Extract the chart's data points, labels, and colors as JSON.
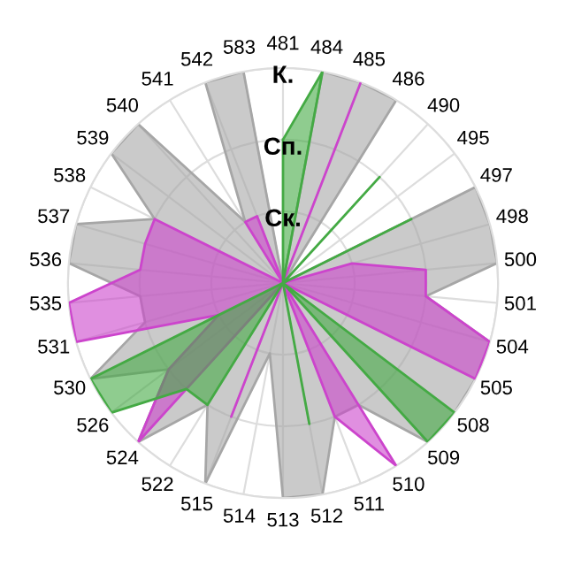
{
  "chart_data": {
    "type": "radar",
    "categories": [
      "481",
      "484",
      "485",
      "486",
      "490",
      "495",
      "497",
      "498",
      "500",
      "501",
      "504",
      "505",
      "508",
      "509",
      "510",
      "511",
      "512",
      "513",
      "514",
      "515",
      "522",
      "524",
      "526",
      "530",
      "531",
      "535",
      "536",
      "537",
      "538",
      "539",
      "540",
      "541",
      "542",
      "583"
    ],
    "ylim": [
      0,
      3
    ],
    "yticks": [
      {
        "value": 1,
        "label": "Ск."
      },
      {
        "value": 2,
        "label": "Сп."
      },
      {
        "value": 3,
        "label": "К."
      }
    ],
    "grid": true,
    "series": [
      {
        "color": "#a6a6a6",
        "values": [
          0,
          3,
          3,
          3,
          0,
          0,
          3,
          3,
          3,
          2,
          3,
          3,
          3,
          3,
          2,
          2,
          3,
          3,
          1,
          3,
          2,
          3,
          2,
          3,
          2,
          2,
          3,
          3,
          2,
          3,
          3,
          1,
          3,
          3
        ]
      },
      {
        "color": "#cc44cc",
        "values": [
          0,
          0,
          3,
          0,
          0,
          0,
          0,
          1,
          2,
          2,
          3,
          3,
          0,
          0,
          3,
          2,
          0,
          0,
          0,
          2,
          0,
          3,
          2,
          1,
          3,
          3,
          2,
          2,
          2,
          0,
          0,
          1,
          1,
          0
        ]
      },
      {
        "color": "#44aa44",
        "values": [
          2,
          3,
          0,
          0,
          2,
          0,
          2,
          0,
          0,
          0,
          0,
          0,
          3,
          3,
          0,
          0,
          2,
          0,
          0,
          0,
          2,
          2,
          3,
          3,
          0,
          0,
          0,
          0,
          0,
          0,
          0,
          0,
          0,
          0
        ]
      }
    ]
  }
}
